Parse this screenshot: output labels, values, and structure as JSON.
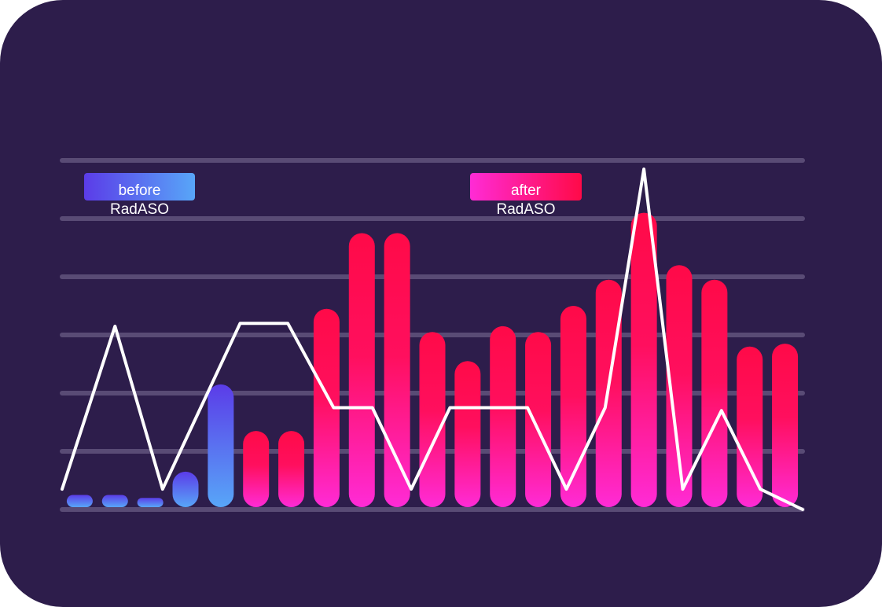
{
  "chart_data": {
    "type": "bar",
    "title": "",
    "xlabel": "",
    "ylabel": "",
    "ylim": [
      0,
      6
    ],
    "grid": true,
    "legend": [
      {
        "label": "before",
        "sublabel": "RadASO",
        "group": "before"
      },
      {
        "label": "after",
        "sublabel": "RadASO",
        "group": "after"
      }
    ],
    "bars": {
      "values": [
        0.25,
        0.25,
        0.2,
        0.65,
        2.15,
        1.35,
        1.35,
        3.45,
        4.75,
        4.75,
        3.05,
        2.55,
        3.15,
        3.05,
        3.5,
        3.95,
        5.1,
        4.2,
        3.95,
        2.8,
        2.85
      ],
      "groups": [
        "before",
        "before",
        "before",
        "before",
        "before",
        "after",
        "after",
        "after",
        "after",
        "after",
        "after",
        "after",
        "after",
        "after",
        "after",
        "after",
        "after",
        "after",
        "after",
        "after",
        "after"
      ]
    },
    "line": {
      "x": [
        0,
        1.5,
        2.85,
        5.05,
        6.4,
        7.7,
        8.8,
        9.9,
        11.0,
        12.1,
        13.2,
        14.3,
        15.4,
        16.5,
        17.6,
        18.7,
        19.8,
        21.0
      ],
      "values": [
        0.35,
        3.15,
        0.35,
        3.2,
        3.2,
        1.75,
        1.75,
        0.35,
        1.75,
        1.75,
        1.75,
        0.35,
        1.75,
        5.85,
        0.35,
        1.7,
        0.35,
        0
      ]
    },
    "colors": {
      "background": "#2d1d4b",
      "grid": "#594b75",
      "line": "#ffffff",
      "before_top": "#5b3ce8",
      "before_bottom": "#58a6f8",
      "after_top": "#ff0a48",
      "after_bottom": "#ff2bd6"
    }
  }
}
